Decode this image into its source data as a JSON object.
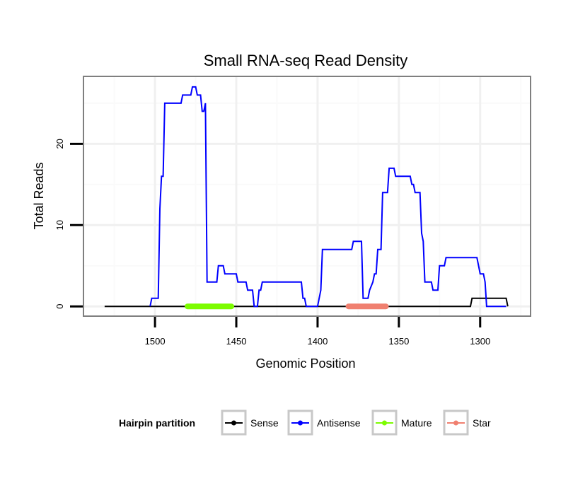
{
  "chart_data": {
    "type": "line",
    "title": "Small RNA-seq Read Density",
    "xlabel": "Genomic Position",
    "ylabel": "Total Reads",
    "xlim": [
      1544,
      1269
    ],
    "x_reversed": true,
    "ylim": [
      -1.2,
      28.3
    ],
    "xticks": [
      1500,
      1450,
      1400,
      1350,
      1300
    ],
    "xtick_labels": [
      "1500",
      "1450",
      "1400",
      "1350",
      "1300"
    ],
    "yticks": [
      0,
      10,
      20
    ],
    "ytick_labels": [
      "0",
      "10",
      "20"
    ],
    "grid": true,
    "legend": {
      "title": "Hairpin partition",
      "placement": "bottom",
      "entries": [
        {
          "name": "Sense",
          "color": "#000000"
        },
        {
          "name": "Antisense",
          "color": "#0000ff"
        },
        {
          "name": "Mature",
          "color": "#7cfc00"
        },
        {
          "name": "Star",
          "color": "#f08070"
        }
      ]
    },
    "series": [
      {
        "name": "Sense",
        "color": "#000000",
        "points": [
          [
            1531,
            0
          ],
          [
            1306,
            0
          ],
          [
            1305,
            1
          ],
          [
            1284,
            1
          ],
          [
            1283,
            0
          ]
        ]
      },
      {
        "name": "Antisense",
        "color": "#0000ff",
        "points": [
          [
            1503,
            0
          ],
          [
            1502,
            1
          ],
          [
            1498,
            1
          ],
          [
            1497,
            12
          ],
          [
            1496,
            16
          ],
          [
            1495,
            16
          ],
          [
            1494,
            25
          ],
          [
            1484,
            25
          ],
          [
            1483,
            26
          ],
          [
            1478,
            26
          ],
          [
            1477,
            27
          ],
          [
            1475,
            27
          ],
          [
            1474,
            26
          ],
          [
            1472,
            26
          ],
          [
            1471,
            24
          ],
          [
            1470,
            24
          ],
          [
            1469,
            25
          ],
          [
            1468,
            3
          ],
          [
            1462,
            3
          ],
          [
            1461,
            5
          ],
          [
            1458,
            5
          ],
          [
            1457,
            4
          ],
          [
            1450,
            4
          ],
          [
            1449,
            3
          ],
          [
            1444,
            3
          ],
          [
            1443,
            2
          ],
          [
            1440,
            2
          ],
          [
            1439,
            0
          ],
          [
            1437,
            0
          ],
          [
            1436,
            2
          ],
          [
            1435,
            2
          ],
          [
            1434,
            3
          ],
          [
            1410,
            3
          ],
          [
            1409,
            1
          ],
          [
            1408,
            1
          ],
          [
            1407,
            0
          ],
          [
            1400,
            0
          ],
          [
            1399,
            1
          ],
          [
            1398,
            2
          ],
          [
            1397,
            7
          ],
          [
            1379,
            7
          ],
          [
            1378,
            8
          ],
          [
            1373,
            8
          ],
          [
            1372,
            1
          ],
          [
            1369,
            1
          ],
          [
            1368,
            2
          ],
          [
            1366,
            3
          ],
          [
            1365,
            4
          ],
          [
            1364,
            4
          ],
          [
            1363,
            7
          ],
          [
            1361,
            7
          ],
          [
            1360,
            14
          ],
          [
            1357,
            14
          ],
          [
            1356,
            17
          ],
          [
            1353,
            17
          ],
          [
            1352,
            16
          ],
          [
            1343,
            16
          ],
          [
            1342,
            15
          ],
          [
            1341,
            15
          ],
          [
            1340,
            14
          ],
          [
            1337,
            14
          ],
          [
            1336,
            9
          ],
          [
            1335,
            8
          ],
          [
            1334,
            3
          ],
          [
            1330,
            3
          ],
          [
            1329,
            2
          ],
          [
            1326,
            2
          ],
          [
            1325,
            5
          ],
          [
            1322,
            5
          ],
          [
            1321,
            6
          ],
          [
            1302,
            6
          ],
          [
            1300,
            4
          ],
          [
            1298,
            4
          ],
          [
            1297,
            3
          ],
          [
            1296,
            0
          ],
          [
            1284,
            0
          ]
        ]
      },
      {
        "name": "Mature",
        "color": "#7cfc00",
        "points": [
          [
            1480,
            0
          ],
          [
            1453,
            0
          ]
        ]
      },
      {
        "name": "Star",
        "color": "#f08070",
        "points": [
          [
            1381,
            0
          ],
          [
            1358,
            0
          ]
        ]
      }
    ]
  }
}
